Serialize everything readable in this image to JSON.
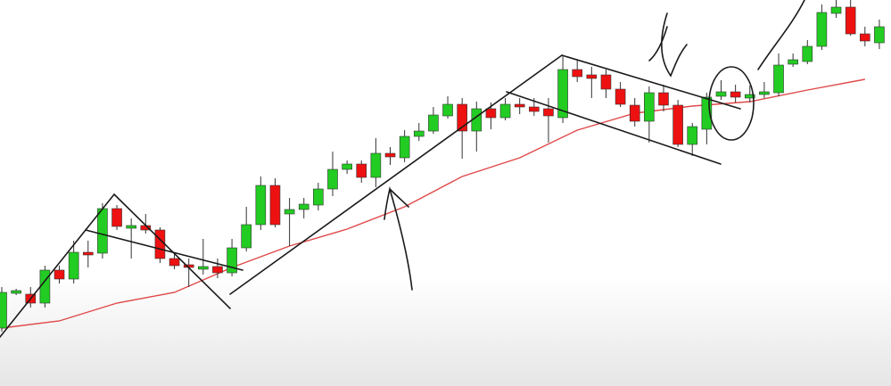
{
  "chart_data": {
    "type": "candlestick",
    "ylim": [
      0,
      433
    ],
    "up_color": "#22cc22",
    "down_color": "#ee1111",
    "wick_color": "#333333",
    "open": [
      65,
      104,
      103,
      93,
      130,
      120,
      150,
      149,
      199,
      177,
      180,
      175,
      143,
      136,
      131,
      134,
      127,
      155,
      181,
      225,
      193,
      198,
      203,
      221,
      243,
      249,
      234,
      261,
      256,
      280,
      286,
      303,
      316,
      286,
      311,
      301,
      316,
      313,
      311,
      301,
      355,
      349,
      349,
      333,
      315,
      297,
      329,
      315,
      271,
      288,
      325,
      330,
      323,
      327,
      329,
      361,
      364,
      381,
      418,
      425,
      395,
      385
    ],
    "high": [
      111,
      109,
      111,
      135,
      135,
      163,
      163,
      205,
      203,
      188,
      193,
      178,
      148,
      143,
      165,
      143,
      165,
      201,
      235,
      233,
      211,
      211,
      228,
      263,
      253,
      253,
      278,
      268,
      287,
      295,
      313,
      325,
      323,
      319,
      318,
      323,
      323,
      323,
      323,
      371,
      365,
      358,
      355,
      341,
      323,
      336,
      338,
      321,
      295,
      329,
      343,
      338,
      337,
      341,
      373,
      373,
      388,
      428,
      433,
      433,
      403,
      411
    ],
    "low": [
      61,
      102,
      88,
      88,
      115,
      115,
      133,
      143,
      175,
      143,
      171,
      138,
      131,
      111,
      125,
      121,
      123,
      151,
      175,
      178,
      157,
      188,
      197,
      213,
      238,
      228,
      223,
      248,
      251,
      275,
      283,
      300,
      255,
      263,
      288,
      298,
      305,
      303,
      273,
      295,
      341,
      323,
      323,
      313,
      291,
      273,
      308,
      268,
      258,
      271,
      321,
      318,
      318,
      323,
      325,
      358,
      361,
      377,
      413,
      393,
      381,
      378
    ],
    "close": [
      105,
      107,
      93,
      130,
      120,
      150,
      147,
      199,
      179,
      180,
      175,
      143,
      135,
      133,
      134,
      127,
      155,
      181,
      225,
      181,
      198,
      204,
      221,
      243,
      249,
      234,
      261,
      257,
      280,
      286,
      304,
      316,
      286,
      311,
      301,
      316,
      313,
      308,
      303,
      355,
      347,
      345,
      333,
      316,
      297,
      329,
      315,
      271,
      291,
      324,
      330,
      324,
      327,
      330,
      360,
      366,
      381,
      419,
      425,
      395,
      387,
      403
    ],
    "moving_average": {
      "color": "#e04848",
      "x": [
        0,
        4,
        8,
        12,
        16,
        20,
        24,
        28,
        32,
        36,
        40,
        44,
        48,
        52,
        56,
        60
      ],
      "values": [
        65,
        73,
        93,
        105,
        133,
        157,
        176,
        201,
        235,
        256,
        287,
        306,
        314,
        319,
        332,
        344
      ]
    }
  }
}
